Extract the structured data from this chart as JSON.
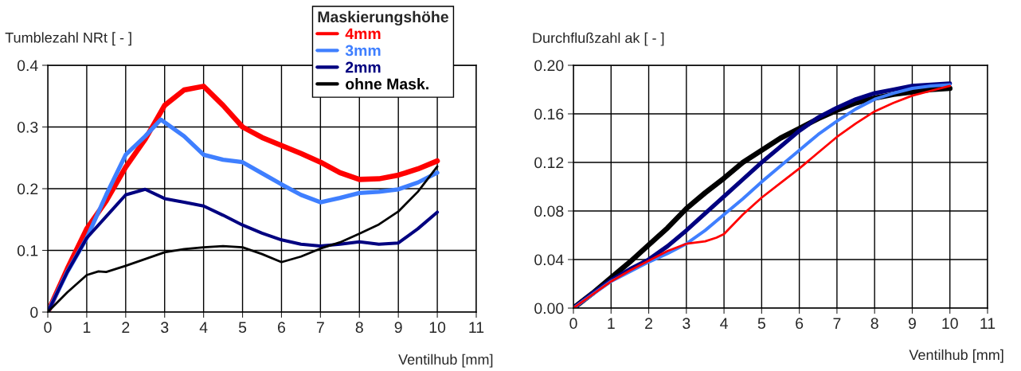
{
  "chart_data": [
    {
      "type": "line",
      "ylabel": "Tumblezahl NRt [ - ]",
      "xlabel": "Ventilhub [mm]",
      "legend_title": "Maskierungshöhe",
      "legend": "top right",
      "xlim": [
        0,
        11
      ],
      "xticks": [
        0,
        1,
        2,
        3,
        4,
        5,
        6,
        7,
        8,
        9,
        10,
        11
      ],
      "ylim": [
        0,
        0.4
      ],
      "yticks": [
        0,
        0.1,
        0.2,
        0.3,
        0.4
      ],
      "grid": true,
      "series": [
        {
          "name": "4mm",
          "color": "#ff0000",
          "x": [
            0,
            0.5,
            1,
            1.5,
            2,
            2.5,
            3,
            3.5,
            4,
            4.5,
            5,
            5.5,
            6,
            6.5,
            7,
            7.5,
            8,
            8.5,
            9,
            9.5,
            10
          ],
          "values": [
            0,
            0.07,
            0.135,
            0.18,
            0.235,
            0.28,
            0.335,
            0.36,
            0.366,
            0.335,
            0.3,
            0.283,
            0.27,
            0.257,
            0.243,
            0.226,
            0.215,
            0.216,
            0.222,
            0.232,
            0.245
          ]
        },
        {
          "name": "3mm",
          "color": "#3f7fff",
          "x": [
            0,
            0.5,
            1,
            1.5,
            2,
            2.5,
            2.9,
            3.5,
            4,
            4.5,
            5,
            5.5,
            6,
            6.5,
            7,
            7.5,
            8,
            8.5,
            9,
            9.5,
            10
          ],
          "values": [
            0,
            0.065,
            0.12,
            0.19,
            0.255,
            0.285,
            0.312,
            0.285,
            0.255,
            0.247,
            0.243,
            0.225,
            0.207,
            0.19,
            0.178,
            0.185,
            0.193,
            0.195,
            0.199,
            0.21,
            0.226
          ]
        },
        {
          "name": "2mm",
          "color": "#000080",
          "x": [
            0,
            0.5,
            1,
            1.5,
            2,
            2.5,
            3,
            3.5,
            4,
            4.5,
            5,
            5.5,
            6,
            6.5,
            7,
            7.5,
            8,
            8.5,
            9,
            9.5,
            10
          ],
          "values": [
            0,
            0.065,
            0.12,
            0.155,
            0.19,
            0.199,
            0.184,
            0.178,
            0.172,
            0.157,
            0.141,
            0.128,
            0.117,
            0.11,
            0.107,
            0.11,
            0.114,
            0.11,
            0.112,
            0.135,
            0.162
          ]
        },
        {
          "name": "ohne Mask.",
          "color": "#000000",
          "x": [
            0,
            0.5,
            1,
            1.3,
            1.5,
            2,
            2.5,
            3,
            3.5,
            4,
            4.5,
            5,
            5.5,
            6,
            6.5,
            7,
            7.5,
            8,
            8.5,
            9,
            9.5,
            10
          ],
          "values": [
            0,
            0.032,
            0.06,
            0.066,
            0.065,
            0.075,
            0.086,
            0.097,
            0.102,
            0.105,
            0.107,
            0.105,
            0.094,
            0.081,
            0.09,
            0.103,
            0.113,
            0.127,
            0.142,
            0.163,
            0.195,
            0.236
          ]
        }
      ]
    },
    {
      "type": "line",
      "ylabel": "Durchflußzahl ak [ - ]",
      "xlabel": "Ventilhub [mm]",
      "xlim": [
        0,
        11
      ],
      "xticks": [
        0,
        1,
        2,
        3,
        4,
        5,
        6,
        7,
        8,
        9,
        10,
        11
      ],
      "ylim": [
        0,
        0.2
      ],
      "yticks": [
        {
          "value": 0,
          "label": "0.00"
        },
        {
          "value": 0.04,
          "label": "0.04"
        },
        {
          "value": 0.08,
          "label": "0.08"
        },
        {
          "value": 0.12,
          "label": "0.12"
        },
        {
          "value": 0.16,
          "label": "0.16"
        },
        {
          "value": 0.2,
          "label": "0.20"
        }
      ],
      "grid": true,
      "series": [
        {
          "color": "#000000",
          "x": [
            0,
            0.5,
            1,
            1.5,
            2,
            2.5,
            3,
            3.5,
            4,
            4.5,
            5,
            5.5,
            6,
            6.5,
            7,
            7.5,
            8,
            8.5,
            9,
            9.5,
            10
          ],
          "values": [
            0,
            0.012,
            0.025,
            0.038,
            0.052,
            0.066,
            0.082,
            0.095,
            0.107,
            0.12,
            0.13,
            0.14,
            0.148,
            0.156,
            0.163,
            0.169,
            0.173,
            0.176,
            0.178,
            0.18,
            0.181
          ]
        },
        {
          "color": "#000080",
          "x": [
            0,
            0.5,
            1,
            1.5,
            2,
            2.5,
            3,
            3.5,
            4,
            4.5,
            5,
            5.5,
            6,
            6.5,
            7,
            7.5,
            8,
            8.5,
            9,
            9.5,
            10
          ],
          "values": [
            0,
            0.012,
            0.023,
            0.032,
            0.04,
            0.051,
            0.064,
            0.078,
            0.092,
            0.106,
            0.12,
            0.133,
            0.146,
            0.157,
            0.165,
            0.172,
            0.177,
            0.18,
            0.183,
            0.184,
            0.185
          ]
        },
        {
          "color": "#3f7fff",
          "x": [
            0,
            0.5,
            1,
            1.5,
            2,
            2.5,
            3,
            3.5,
            4,
            4.5,
            5,
            5.5,
            6,
            6.5,
            7,
            7.5,
            8,
            8.5,
            9,
            9.5,
            10
          ],
          "values": [
            0,
            0.011,
            0.022,
            0.03,
            0.038,
            0.045,
            0.053,
            0.064,
            0.077,
            0.09,
            0.104,
            0.117,
            0.13,
            0.143,
            0.154,
            0.164,
            0.172,
            0.177,
            0.181,
            0.183,
            0.184
          ]
        },
        {
          "color": "#ff0000",
          "x": [
            0,
            0.5,
            1,
            1.5,
            2,
            2.5,
            3,
            3.5,
            3.8,
            4,
            4.5,
            5,
            5.5,
            6,
            6.5,
            7,
            7.5,
            8,
            8.5,
            9,
            9.5,
            10
          ],
          "values": [
            0,
            0.011,
            0.022,
            0.031,
            0.039,
            0.047,
            0.053,
            0.055,
            0.058,
            0.061,
            0.077,
            0.091,
            0.103,
            0.115,
            0.128,
            0.141,
            0.152,
            0.162,
            0.169,
            0.175,
            0.179,
            0.183
          ]
        }
      ]
    }
  ]
}
